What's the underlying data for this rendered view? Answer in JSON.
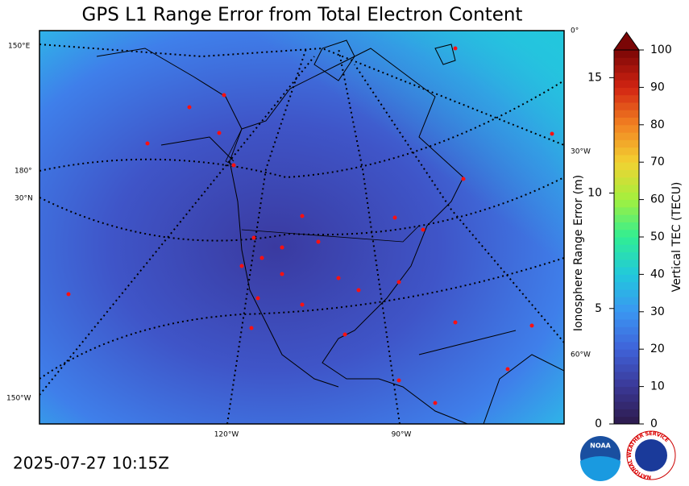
{
  "title": "GPS L1 Range Error from Total Electron Content",
  "timestamp": "2025-07-27 10:15Z",
  "graticule_labels": [
    "150°E",
    "180°",
    "30°N",
    "150°W",
    "0°",
    "30°W",
    "60°W",
    "120°W",
    "90°W"
  ],
  "colorbar": {
    "left_label": "Ionosphere Range Error (m)",
    "left_lim": [
      0,
      16.2
    ],
    "left_ticks": [
      0,
      5,
      10,
      15
    ],
    "right_label": "Vertical TEC (TECU)",
    "right_lim": [
      0,
      100
    ],
    "right_ticks": [
      0,
      10,
      20,
      30,
      40,
      50,
      60,
      70,
      80,
      90,
      100
    ],
    "colors": [
      "#2d1a4a",
      "#3a3896",
      "#3f62d8",
      "#3a96f2",
      "#22c8dc",
      "#30ee94",
      "#a2f03e",
      "#f2d232",
      "#f28222",
      "#d22412",
      "#7a0606"
    ]
  },
  "logos": {
    "noaa": "NOAA",
    "nws": "NATIONAL WEATHER SERVICE"
  }
}
